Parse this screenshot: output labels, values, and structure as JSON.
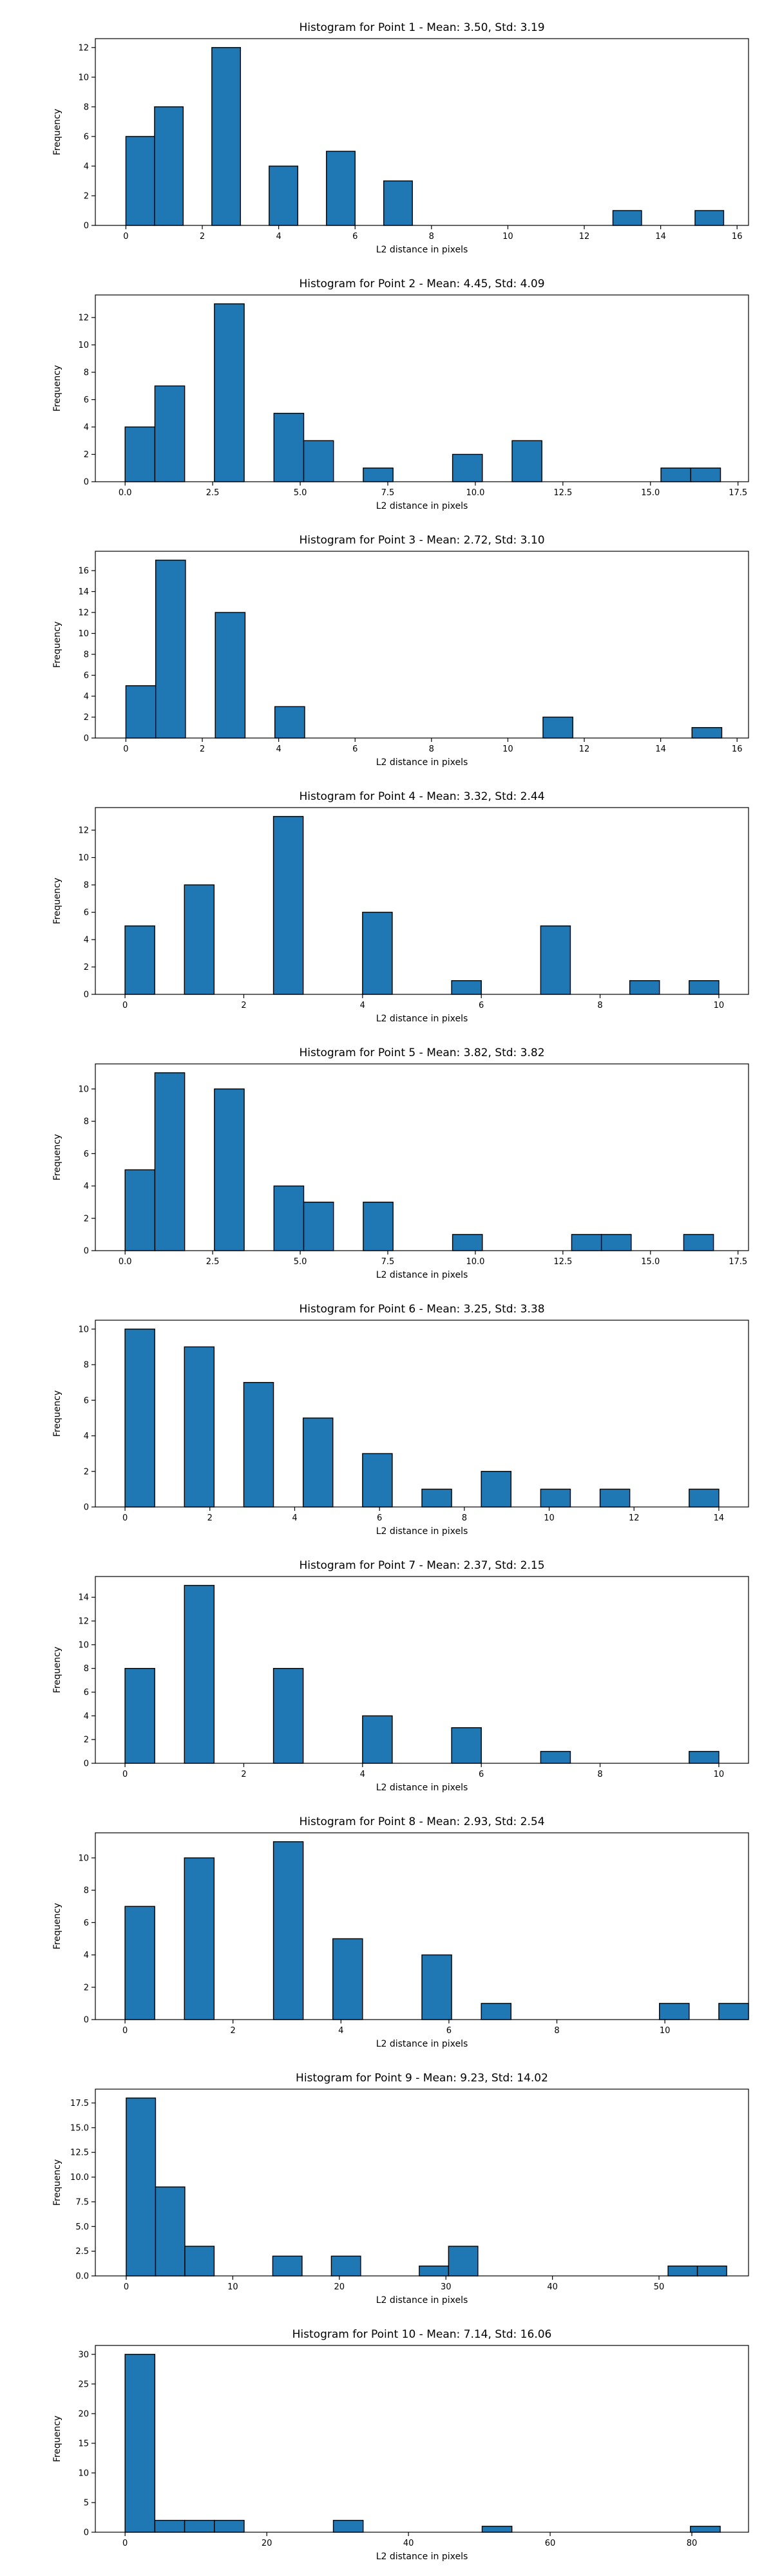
{
  "figure": {
    "background": "#ffffff",
    "bar_color": "#1f77b4",
    "edge_color": "#000000"
  },
  "chart_data": [
    {
      "type": "bar",
      "title": "Histogram for Point 1 - Mean: 3.50, Std: 3.19",
      "xlabel": "L2 distance in pixels",
      "ylabel": "Frequency",
      "xlim": [
        -0.8,
        16.3
      ],
      "ylim": [
        0,
        12.6
      ],
      "xticks": [
        0,
        2,
        4,
        6,
        8,
        10,
        12,
        14,
        16
      ],
      "yticks": [
        0,
        2,
        4,
        6,
        8,
        10,
        12
      ],
      "bin_width": 0.75,
      "bars": [
        {
          "x0": 0.0,
          "value": 6
        },
        {
          "x0": 0.75,
          "value": 8
        },
        {
          "x0": 2.25,
          "value": 12
        },
        {
          "x0": 3.75,
          "value": 4
        },
        {
          "x0": 5.25,
          "value": 5
        },
        {
          "x0": 6.75,
          "value": 3
        },
        {
          "x0": 12.75,
          "value": 1
        },
        {
          "x0": 14.9,
          "value": 1
        }
      ]
    },
    {
      "type": "bar",
      "title": "Histogram for Point 2 - Mean: 4.45, Std: 4.09",
      "xlabel": "L2 distance in pixels",
      "ylabel": "Frequency",
      "xlim": [
        -0.85,
        17.8
      ],
      "ylim": [
        0,
        13.65
      ],
      "xticks": [
        0.0,
        2.5,
        5.0,
        7.5,
        10.0,
        12.5,
        15.0,
        17.5
      ],
      "xtick_labels": [
        "0.0",
        "2.5",
        "5.0",
        "7.5",
        "10.0",
        "12.5",
        "15.0",
        "17.5"
      ],
      "yticks": [
        0,
        2,
        4,
        6,
        8,
        10,
        12
      ],
      "bin_width": 0.85,
      "bars": [
        {
          "x0": 0.0,
          "value": 4
        },
        {
          "x0": 0.85,
          "value": 7
        },
        {
          "x0": 2.55,
          "value": 13
        },
        {
          "x0": 4.25,
          "value": 5
        },
        {
          "x0": 5.1,
          "value": 3
        },
        {
          "x0": 6.8,
          "value": 1
        },
        {
          "x0": 9.35,
          "value": 2
        },
        {
          "x0": 11.05,
          "value": 3
        },
        {
          "x0": 15.3,
          "value": 1
        },
        {
          "x0": 16.15,
          "value": 1
        }
      ]
    },
    {
      "type": "bar",
      "title": "Histogram for Point 3 - Mean: 2.72, Std: 3.10",
      "xlabel": "L2 distance in pixels",
      "ylabel": "Frequency",
      "xlim": [
        -0.8,
        16.3
      ],
      "ylim": [
        0,
        17.85
      ],
      "xticks": [
        0,
        2,
        4,
        6,
        8,
        10,
        12,
        14,
        16
      ],
      "yticks": [
        0,
        2,
        4,
        6,
        8,
        10,
        12,
        14,
        16
      ],
      "bin_width": 0.78,
      "bars": [
        {
          "x0": 0.0,
          "value": 5
        },
        {
          "x0": 0.78,
          "value": 17
        },
        {
          "x0": 2.34,
          "value": 12
        },
        {
          "x0": 3.9,
          "value": 3
        },
        {
          "x0": 10.92,
          "value": 2
        },
        {
          "x0": 14.82,
          "value": 1
        }
      ]
    },
    {
      "type": "bar",
      "title": "Histogram for Point 4 - Mean: 3.32, Std: 2.44",
      "xlabel": "L2 distance in pixels",
      "ylabel": "Frequency",
      "xlim": [
        -0.5,
        10.5
      ],
      "ylim": [
        0,
        13.65
      ],
      "xticks": [
        0,
        2,
        4,
        6,
        8,
        10
      ],
      "yticks": [
        0,
        2,
        4,
        6,
        8,
        10,
        12
      ],
      "bin_width": 0.5,
      "bars": [
        {
          "x0": 0.0,
          "value": 5
        },
        {
          "x0": 1.0,
          "value": 8
        },
        {
          "x0": 2.5,
          "value": 13
        },
        {
          "x0": 4.0,
          "value": 6
        },
        {
          "x0": 5.5,
          "value": 1
        },
        {
          "x0": 7.0,
          "value": 5
        },
        {
          "x0": 8.5,
          "value": 1
        },
        {
          "x0": 9.5,
          "value": 1
        }
      ]
    },
    {
      "type": "bar",
      "title": "Histogram for Point 5 - Mean: 3.82, Std: 3.82",
      "xlabel": "L2 distance in pixels",
      "ylabel": "Frequency",
      "xlim": [
        -0.85,
        17.8
      ],
      "ylim": [
        0,
        11.55
      ],
      "xticks": [
        0.0,
        2.5,
        5.0,
        7.5,
        10.0,
        12.5,
        15.0,
        17.5
      ],
      "xtick_labels": [
        "0.0",
        "2.5",
        "5.0",
        "7.5",
        "10.0",
        "12.5",
        "15.0",
        "17.5"
      ],
      "yticks": [
        0,
        2,
        4,
        6,
        8,
        10
      ],
      "bin_width": 0.85,
      "bars": [
        {
          "x0": 0.0,
          "value": 5
        },
        {
          "x0": 0.85,
          "value": 11
        },
        {
          "x0": 2.55,
          "value": 10
        },
        {
          "x0": 4.25,
          "value": 4
        },
        {
          "x0": 5.1,
          "value": 3
        },
        {
          "x0": 6.8,
          "value": 3
        },
        {
          "x0": 9.35,
          "value": 1
        },
        {
          "x0": 12.75,
          "value": 1
        },
        {
          "x0": 13.6,
          "value": 1
        },
        {
          "x0": 15.95,
          "value": 1
        }
      ]
    },
    {
      "type": "bar",
      "title": "Histogram for Point 6 - Mean: 3.25, Std: 3.38",
      "xlabel": "L2 distance in pixels",
      "ylabel": "Frequency",
      "xlim": [
        -0.7,
        14.7
      ],
      "ylim": [
        0,
        10.5
      ],
      "xticks": [
        0,
        2,
        4,
        6,
        8,
        10,
        12,
        14
      ],
      "yticks": [
        0,
        2,
        4,
        6,
        8,
        10
      ],
      "bin_width": 0.7,
      "bars": [
        {
          "x0": 0.0,
          "value": 10
        },
        {
          "x0": 1.4,
          "value": 9
        },
        {
          "x0": 2.8,
          "value": 7
        },
        {
          "x0": 4.2,
          "value": 5
        },
        {
          "x0": 5.6,
          "value": 3
        },
        {
          "x0": 7.0,
          "value": 1
        },
        {
          "x0": 8.4,
          "value": 2
        },
        {
          "x0": 9.8,
          "value": 1
        },
        {
          "x0": 11.2,
          "value": 1
        },
        {
          "x0": 13.3,
          "value": 1
        }
      ]
    },
    {
      "type": "bar",
      "title": "Histogram for Point 7 - Mean: 2.37, Std: 2.15",
      "xlabel": "L2 distance in pixels",
      "ylabel": "Frequency",
      "xlim": [
        -0.5,
        10.5
      ],
      "ylim": [
        0,
        15.75
      ],
      "xticks": [
        0,
        2,
        4,
        6,
        8,
        10
      ],
      "yticks": [
        0,
        2,
        4,
        6,
        8,
        10,
        12,
        14
      ],
      "bin_width": 0.5,
      "bars": [
        {
          "x0": 0.0,
          "value": 8
        },
        {
          "x0": 1.0,
          "value": 15
        },
        {
          "x0": 2.5,
          "value": 8
        },
        {
          "x0": 4.0,
          "value": 4
        },
        {
          "x0": 5.5,
          "value": 3
        },
        {
          "x0": 7.0,
          "value": 1
        },
        {
          "x0": 9.5,
          "value": 1
        }
      ]
    },
    {
      "type": "bar",
      "title": "Histogram for Point 8 - Mean: 2.93, Std: 2.54",
      "xlabel": "L2 distance in pixels",
      "ylabel": "Frequency",
      "xlim": [
        -0.55,
        11.55
      ],
      "ylim": [
        0,
        11.55
      ],
      "xticks": [
        0,
        2,
        4,
        6,
        8,
        10
      ],
      "yticks": [
        0,
        2,
        4,
        6,
        8,
        10
      ],
      "bin_width": 0.55,
      "bars": [
        {
          "x0": 0.0,
          "value": 7
        },
        {
          "x0": 1.1,
          "value": 10
        },
        {
          "x0": 2.75,
          "value": 11
        },
        {
          "x0": 3.85,
          "value": 5
        },
        {
          "x0": 5.5,
          "value": 4
        },
        {
          "x0": 6.6,
          "value": 1
        },
        {
          "x0": 9.9,
          "value": 1
        },
        {
          "x0": 11.0,
          "value": 1
        }
      ]
    },
    {
      "type": "bar",
      "title": "Histogram for Point 9 - Mean: 9.23, Std: 14.02",
      "xlabel": "L2 distance in pixels",
      "ylabel": "Frequency",
      "xlim": [
        -2.9,
        58.4
      ],
      "ylim": [
        0,
        18.9
      ],
      "xticks": [
        0,
        10,
        20,
        30,
        40,
        50
      ],
      "yticks": [
        0.0,
        2.5,
        5.0,
        7.5,
        10.0,
        12.5,
        15.0,
        17.5
      ],
      "ytick_labels": [
        "0.0",
        "2.5",
        "5.0",
        "7.5",
        "10.0",
        "12.5",
        "15.0",
        "17.5"
      ],
      "bin_width": 2.75,
      "bars": [
        {
          "x0": 0.0,
          "value": 18
        },
        {
          "x0": 2.75,
          "value": 9
        },
        {
          "x0": 5.5,
          "value": 3
        },
        {
          "x0": 13.75,
          "value": 2
        },
        {
          "x0": 19.25,
          "value": 2
        },
        {
          "x0": 27.5,
          "value": 1
        },
        {
          "x0": 30.25,
          "value": 3
        },
        {
          "x0": 50.85,
          "value": 1
        },
        {
          "x0": 53.6,
          "value": 1
        }
      ]
    },
    {
      "type": "bar",
      "title": "Histogram for Point 10 - Mean: 7.14, Std: 16.06",
      "xlabel": "L2 distance in pixels",
      "ylabel": "Frequency",
      "xlim": [
        -4.2,
        88.0
      ],
      "ylim": [
        0,
        31.5
      ],
      "xticks": [
        0,
        20,
        40,
        60,
        80
      ],
      "yticks": [
        0,
        5,
        10,
        15,
        20,
        25,
        30
      ],
      "bin_width": 4.2,
      "bars": [
        {
          "x0": 0.0,
          "value": 30
        },
        {
          "x0": 4.2,
          "value": 2
        },
        {
          "x0": 8.4,
          "value": 2
        },
        {
          "x0": 12.6,
          "value": 2
        },
        {
          "x0": 29.4,
          "value": 2
        },
        {
          "x0": 50.4,
          "value": 1
        },
        {
          "x0": 79.8,
          "value": 1
        }
      ]
    }
  ]
}
